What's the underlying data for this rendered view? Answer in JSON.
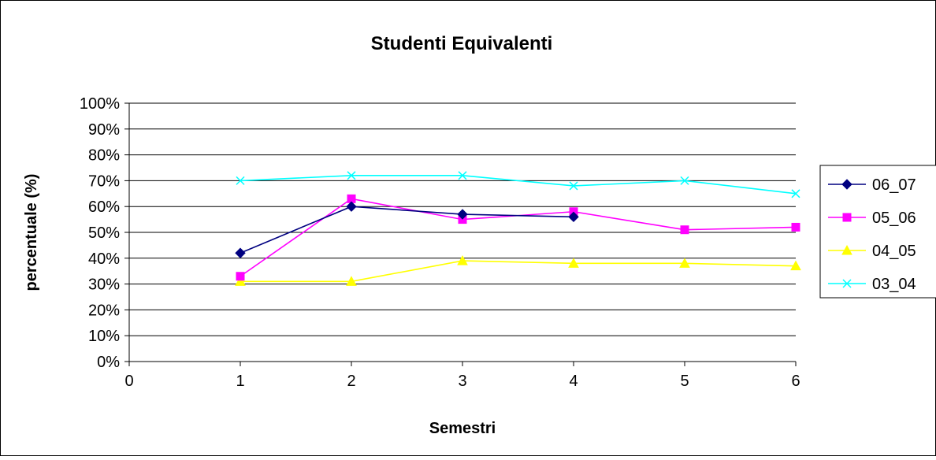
{
  "chart_data": {
    "type": "line",
    "title": "Studenti Equivalenti",
    "xlabel": "Semestri",
    "ylabel": "percentuale (%)",
    "xlim": [
      0,
      6
    ],
    "ylim": [
      0,
      100
    ],
    "x_ticks": [
      "0",
      "1",
      "2",
      "3",
      "4",
      "5",
      "6"
    ],
    "y_ticks": [
      "0%",
      "10%",
      "20%",
      "30%",
      "40%",
      "50%",
      "60%",
      "70%",
      "80%",
      "90%",
      "100%"
    ],
    "grid": "horizontal",
    "legend_position": "right",
    "series": [
      {
        "name": "06_07",
        "color": "#000080",
        "marker": "diamond",
        "x": [
          1,
          2,
          3,
          4
        ],
        "values": [
          42,
          60,
          57,
          56
        ]
      },
      {
        "name": "05_06",
        "color": "#FF00FF",
        "marker": "square",
        "x": [
          1,
          2,
          3,
          4,
          5,
          6
        ],
        "values": [
          33,
          63,
          55,
          58,
          51,
          52
        ]
      },
      {
        "name": "04_05",
        "color": "#FFFF00",
        "marker": "triangle",
        "x": [
          1,
          2,
          3,
          4,
          5,
          6
        ],
        "values": [
          31,
          31,
          39,
          38,
          38,
          37
        ]
      },
      {
        "name": "03_04",
        "color": "#00FFFF",
        "marker": "x",
        "x": [
          1,
          2,
          3,
          4,
          5,
          6
        ],
        "values": [
          70,
          72,
          72,
          68,
          70,
          65
        ]
      }
    ]
  }
}
